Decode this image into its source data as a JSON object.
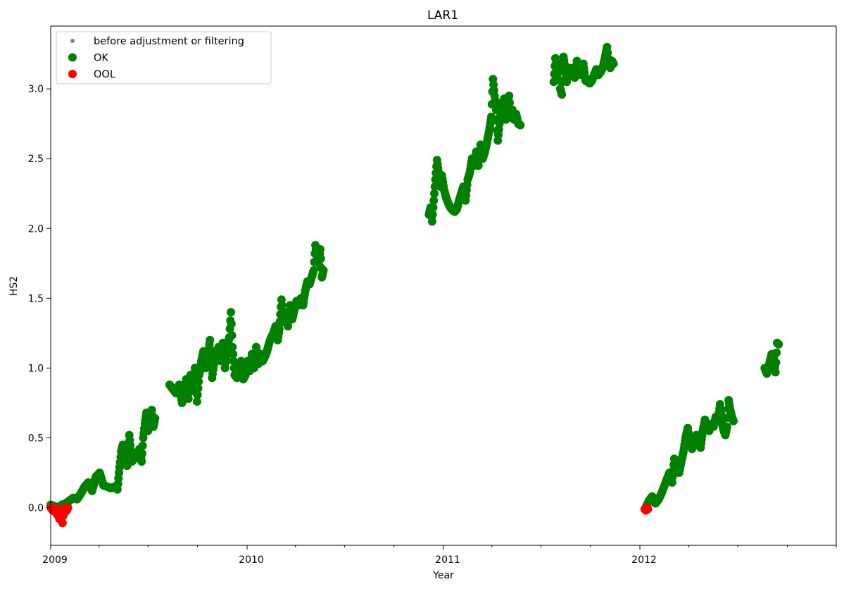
{
  "chart_data": {
    "type": "scatter",
    "title": "LAR1",
    "xlabel": "Year",
    "ylabel": "HS2",
    "x_axis_type": "date",
    "xlim": [
      "2009-01-01",
      "2012-12-31"
    ],
    "ylim": [
      -0.27,
      3.45
    ],
    "x_major_ticks": [
      {
        "date": "2009-01-01",
        "label": "2009"
      },
      {
        "date": "2010-01-01",
        "label": "2010"
      },
      {
        "date": "2011-01-01",
        "label": "2011"
      },
      {
        "date": "2012-01-01",
        "label": "2012"
      }
    ],
    "x_minor_ticks": [
      "2009-04-01",
      "2009-07-01",
      "2009-10-01",
      "2010-04-01",
      "2010-07-01",
      "2010-10-01",
      "2011-04-01",
      "2011-07-01",
      "2011-10-01",
      "2012-04-01",
      "2012-07-01",
      "2012-10-01",
      "2012-12-31"
    ],
    "y_ticks": [
      {
        "value": 0.0,
        "label": "0.0"
      },
      {
        "value": 0.5,
        "label": "0.5"
      },
      {
        "value": 1.0,
        "label": "1.0"
      },
      {
        "value": 1.5,
        "label": "1.5"
      },
      {
        "value": 2.0,
        "label": "2.0"
      },
      {
        "value": 2.5,
        "label": "2.5"
      },
      {
        "value": 3.0,
        "label": "3.0"
      }
    ],
    "grid": false,
    "legend_position": "upper-left",
    "series": [
      {
        "name": "before adjustment or filtering",
        "color": "#808080",
        "marker": "small-dot",
        "points": []
      },
      {
        "name": "OK",
        "color": "#008000",
        "marker": "dot",
        "points": [
          [
            "2009-01-01",
            0.02
          ],
          [
            "2009-01-08",
            0.01
          ],
          [
            "2009-01-15",
            0.0
          ],
          [
            "2009-01-22",
            0.02
          ],
          [
            "2009-01-29",
            0.03
          ],
          [
            "2009-02-05",
            0.05
          ],
          [
            "2009-02-12",
            0.07
          ],
          [
            "2009-02-19",
            0.06
          ],
          [
            "2009-02-26",
            0.1
          ],
          [
            "2009-03-05",
            0.15
          ],
          [
            "2009-03-12",
            0.18
          ],
          [
            "2009-03-19",
            0.12
          ],
          [
            "2009-03-26",
            0.22
          ],
          [
            "2009-04-02",
            0.25
          ],
          [
            "2009-04-09",
            0.16
          ],
          [
            "2009-04-16",
            0.15
          ],
          [
            "2009-04-23",
            0.14
          ],
          [
            "2009-04-30",
            0.15
          ],
          [
            "2009-05-05",
            0.13
          ],
          [
            "2009-05-08",
            0.25
          ],
          [
            "2009-05-12",
            0.4
          ],
          [
            "2009-05-15",
            0.45
          ],
          [
            "2009-05-19",
            0.35
          ],
          [
            "2009-05-23",
            0.3
          ],
          [
            "2009-05-27",
            0.52
          ],
          [
            "2009-06-01",
            0.33
          ],
          [
            "2009-06-05",
            0.35
          ],
          [
            "2009-06-10",
            0.38
          ],
          [
            "2009-06-15",
            0.42
          ],
          [
            "2009-06-19",
            0.33
          ],
          [
            "2009-06-22",
            0.5
          ],
          [
            "2009-06-25",
            0.6
          ],
          [
            "2009-06-28",
            0.68
          ],
          [
            "2009-07-01",
            0.55
          ],
          [
            "2009-07-05",
            0.62
          ],
          [
            "2009-07-08",
            0.7
          ],
          [
            "2009-07-11",
            0.58
          ],
          [
            "2009-07-14",
            0.64
          ],
          [
            "2009-08-10",
            0.88
          ],
          [
            "2009-08-16",
            0.85
          ],
          [
            "2009-08-22",
            0.82
          ],
          [
            "2009-08-28",
            0.88
          ],
          [
            "2009-09-02",
            0.75
          ],
          [
            "2009-09-06",
            0.8
          ],
          [
            "2009-09-10",
            0.92
          ],
          [
            "2009-09-14",
            0.78
          ],
          [
            "2009-09-18",
            0.95
          ],
          [
            "2009-09-22",
            0.85
          ],
          [
            "2009-09-26",
            1.0
          ],
          [
            "2009-09-30",
            0.76
          ],
          [
            "2009-10-04",
            0.95
          ],
          [
            "2009-10-08",
            1.05
          ],
          [
            "2009-10-12",
            1.12
          ],
          [
            "2009-10-16",
            1.0
          ],
          [
            "2009-10-20",
            1.08
          ],
          [
            "2009-10-24",
            1.2
          ],
          [
            "2009-10-28",
            0.93
          ],
          [
            "2009-11-01",
            1.05
          ],
          [
            "2009-11-05",
            1.1
          ],
          [
            "2009-11-09",
            1.15
          ],
          [
            "2009-11-13",
            1.05
          ],
          [
            "2009-11-17",
            1.18
          ],
          [
            "2009-11-21",
            1.0
          ],
          [
            "2009-11-25",
            1.15
          ],
          [
            "2009-11-29",
            1.22
          ],
          [
            "2009-12-02",
            1.4
          ],
          [
            "2009-12-05",
            1.15
          ],
          [
            "2009-12-09",
            0.95
          ],
          [
            "2009-12-13",
            0.93
          ],
          [
            "2009-12-17",
            1.0
          ],
          [
            "2009-12-21",
            1.05
          ],
          [
            "2009-12-25",
            0.92
          ],
          [
            "2009-12-29",
            0.95
          ],
          [
            "2010-01-02",
            1.05
          ],
          [
            "2010-01-06",
            0.98
          ],
          [
            "2010-01-10",
            1.1
          ],
          [
            "2010-01-14",
            1.0
          ],
          [
            "2010-01-18",
            1.15
          ],
          [
            "2010-01-22",
            1.03
          ],
          [
            "2010-01-26",
            1.1
          ],
          [
            "2010-01-30",
            1.05
          ],
          [
            "2010-02-03",
            1.08
          ],
          [
            "2010-02-07",
            1.12
          ],
          [
            "2010-02-11",
            1.18
          ],
          [
            "2010-02-15",
            1.22
          ],
          [
            "2010-02-19",
            1.25
          ],
          [
            "2010-02-23",
            1.3
          ],
          [
            "2010-02-27",
            1.2
          ],
          [
            "2010-03-02",
            1.28
          ],
          [
            "2010-03-06",
            1.49
          ],
          [
            "2010-03-10",
            1.33
          ],
          [
            "2010-03-14",
            1.4
          ],
          [
            "2010-03-18",
            1.3
          ],
          [
            "2010-03-22",
            1.45
          ],
          [
            "2010-03-26",
            1.35
          ],
          [
            "2010-03-30",
            1.42
          ],
          [
            "2010-04-03",
            1.48
          ],
          [
            "2010-04-07",
            1.45
          ],
          [
            "2010-04-11",
            1.5
          ],
          [
            "2010-04-15",
            1.45
          ],
          [
            "2010-04-19",
            1.55
          ],
          [
            "2010-04-23",
            1.62
          ],
          [
            "2010-04-27",
            1.6
          ],
          [
            "2010-05-01",
            1.65
          ],
          [
            "2010-05-05",
            1.7
          ],
          [
            "2010-05-08",
            1.88
          ],
          [
            "2010-05-11",
            1.8
          ],
          [
            "2010-05-14",
            1.75
          ],
          [
            "2010-05-17",
            1.85
          ],
          [
            "2010-05-20",
            1.65
          ],
          [
            "2010-05-23",
            1.7
          ],
          [
            "2010-12-05",
            2.1
          ],
          [
            "2010-12-08",
            2.15
          ],
          [
            "2010-12-11",
            2.05
          ],
          [
            "2010-12-14",
            2.2
          ],
          [
            "2010-12-17",
            2.35
          ],
          [
            "2010-12-20",
            2.49
          ],
          [
            "2010-12-23",
            2.4
          ],
          [
            "2010-12-26",
            2.3
          ],
          [
            "2010-12-29",
            2.38
          ],
          [
            "2011-01-02",
            2.28
          ],
          [
            "2011-01-06",
            2.22
          ],
          [
            "2011-01-10",
            2.18
          ],
          [
            "2011-01-14",
            2.15
          ],
          [
            "2011-01-18",
            2.13
          ],
          [
            "2011-01-22",
            2.12
          ],
          [
            "2011-01-26",
            2.14
          ],
          [
            "2011-01-30",
            2.2
          ],
          [
            "2011-02-03",
            2.25
          ],
          [
            "2011-02-07",
            2.3
          ],
          [
            "2011-02-11",
            2.2
          ],
          [
            "2011-02-15",
            2.35
          ],
          [
            "2011-02-19",
            2.4
          ],
          [
            "2011-02-23",
            2.5
          ],
          [
            "2011-02-27",
            2.45
          ],
          [
            "2011-03-03",
            2.55
          ],
          [
            "2011-03-07",
            2.45
          ],
          [
            "2011-03-11",
            2.6
          ],
          [
            "2011-03-15",
            2.5
          ],
          [
            "2011-03-19",
            2.55
          ],
          [
            "2011-03-23",
            2.62
          ],
          [
            "2011-03-27",
            2.7
          ],
          [
            "2011-03-31",
            2.8
          ],
          [
            "2011-04-03",
            3.07
          ],
          [
            "2011-04-06",
            2.95
          ],
          [
            "2011-04-09",
            2.85
          ],
          [
            "2011-04-12",
            2.63
          ],
          [
            "2011-04-15",
            2.75
          ],
          [
            "2011-04-18",
            2.9
          ],
          [
            "2011-04-21",
            2.8
          ],
          [
            "2011-04-24",
            2.93
          ],
          [
            "2011-04-27",
            2.78
          ],
          [
            "2011-04-30",
            2.85
          ],
          [
            "2011-05-03",
            2.95
          ],
          [
            "2011-05-06",
            2.8
          ],
          [
            "2011-05-09",
            2.85
          ],
          [
            "2011-05-12",
            2.78
          ],
          [
            "2011-05-16",
            2.82
          ],
          [
            "2011-05-20",
            2.75
          ],
          [
            "2011-05-24",
            2.74
          ],
          [
            "2011-07-25",
            3.05
          ],
          [
            "2011-07-28",
            3.22
          ],
          [
            "2011-07-31",
            3.1
          ],
          [
            "2011-08-03",
            3.18
          ],
          [
            "2011-08-06",
            3.0
          ],
          [
            "2011-08-09",
            2.96
          ],
          [
            "2011-08-12",
            3.23
          ],
          [
            "2011-08-15",
            3.15
          ],
          [
            "2011-08-18",
            3.05
          ],
          [
            "2011-08-21",
            3.12
          ],
          [
            "2011-08-25",
            3.15
          ],
          [
            "2011-08-29",
            3.1
          ],
          [
            "2011-09-02",
            3.08
          ],
          [
            "2011-09-06",
            3.2
          ],
          [
            "2011-09-10",
            3.12
          ],
          [
            "2011-09-14",
            3.1
          ],
          [
            "2011-09-18",
            3.18
          ],
          [
            "2011-09-22",
            3.06
          ],
          [
            "2011-09-26",
            3.05
          ],
          [
            "2011-09-30",
            3.04
          ],
          [
            "2011-10-04",
            3.06
          ],
          [
            "2011-10-08",
            3.1
          ],
          [
            "2011-10-12",
            3.14
          ],
          [
            "2011-10-16",
            3.1
          ],
          [
            "2011-10-20",
            3.12
          ],
          [
            "2011-10-24",
            3.15
          ],
          [
            "2011-10-28",
            3.22
          ],
          [
            "2011-11-01",
            3.3
          ],
          [
            "2011-11-04",
            3.18
          ],
          [
            "2011-11-07",
            3.15
          ],
          [
            "2011-11-10",
            3.2
          ],
          [
            "2011-11-13",
            3.18
          ],
          [
            "2012-01-12",
            0.0
          ],
          [
            "2012-01-18",
            0.05
          ],
          [
            "2012-01-24",
            0.08
          ],
          [
            "2012-01-30",
            0.03
          ],
          [
            "2012-02-05",
            0.06
          ],
          [
            "2012-02-10",
            0.1
          ],
          [
            "2012-02-15",
            0.15
          ],
          [
            "2012-02-20",
            0.2
          ],
          [
            "2012-02-25",
            0.25
          ],
          [
            "2012-03-01",
            0.18
          ],
          [
            "2012-03-05",
            0.35
          ],
          [
            "2012-03-10",
            0.28
          ],
          [
            "2012-03-14",
            0.25
          ],
          [
            "2012-03-18",
            0.33
          ],
          [
            "2012-03-22",
            0.4
          ],
          [
            "2012-03-26",
            0.5
          ],
          [
            "2012-03-30",
            0.57
          ],
          [
            "2012-04-03",
            0.45
          ],
          [
            "2012-04-07",
            0.42
          ],
          [
            "2012-04-11",
            0.48
          ],
          [
            "2012-04-15",
            0.52
          ],
          [
            "2012-04-19",
            0.45
          ],
          [
            "2012-04-23",
            0.43
          ],
          [
            "2012-04-27",
            0.55
          ],
          [
            "2012-05-01",
            0.63
          ],
          [
            "2012-05-05",
            0.58
          ],
          [
            "2012-05-09",
            0.55
          ],
          [
            "2012-05-13",
            0.6
          ],
          [
            "2012-05-17",
            0.58
          ],
          [
            "2012-05-21",
            0.65
          ],
          [
            "2012-05-25",
            0.62
          ],
          [
            "2012-05-29",
            0.74
          ],
          [
            "2012-06-02",
            0.6
          ],
          [
            "2012-06-05",
            0.55
          ],
          [
            "2012-06-08",
            0.52
          ],
          [
            "2012-06-11",
            0.58
          ],
          [
            "2012-06-14",
            0.77
          ],
          [
            "2012-06-17",
            0.7
          ],
          [
            "2012-06-20",
            0.65
          ],
          [
            "2012-06-23",
            0.62
          ],
          [
            "2012-08-20",
            1.0
          ],
          [
            "2012-08-24",
            0.96
          ],
          [
            "2012-08-28",
            1.02
          ],
          [
            "2012-09-02",
            1.1
          ],
          [
            "2012-09-06",
            1.08
          ],
          [
            "2012-09-09",
            0.97
          ],
          [
            "2012-09-12",
            1.18
          ],
          [
            "2012-09-15",
            1.17
          ]
        ]
      },
      {
        "name": "OOL",
        "color": "#ff0000",
        "marker": "dot",
        "points": [
          [
            "2009-01-01",
            0.0
          ],
          [
            "2009-01-03",
            -0.01
          ],
          [
            "2009-01-05",
            -0.02
          ],
          [
            "2009-01-07",
            0.0
          ],
          [
            "2009-01-09",
            -0.03
          ],
          [
            "2009-01-11",
            -0.01
          ],
          [
            "2009-01-13",
            -0.05
          ],
          [
            "2009-01-15",
            -0.02
          ],
          [
            "2009-01-17",
            -0.08
          ],
          [
            "2009-01-19",
            -0.06
          ],
          [
            "2009-01-21",
            -0.03
          ],
          [
            "2009-01-23",
            -0.11
          ],
          [
            "2009-01-25",
            -0.01
          ],
          [
            "2009-01-27",
            -0.04
          ],
          [
            "2009-01-29",
            0.0
          ],
          [
            "2009-01-31",
            -0.02
          ],
          [
            "2009-02-02",
            0.0
          ],
          [
            "2012-01-10",
            -0.01
          ],
          [
            "2012-01-12",
            -0.02
          ],
          [
            "2012-01-14",
            0.0
          ],
          [
            "2012-01-16",
            -0.01
          ]
        ]
      }
    ]
  }
}
